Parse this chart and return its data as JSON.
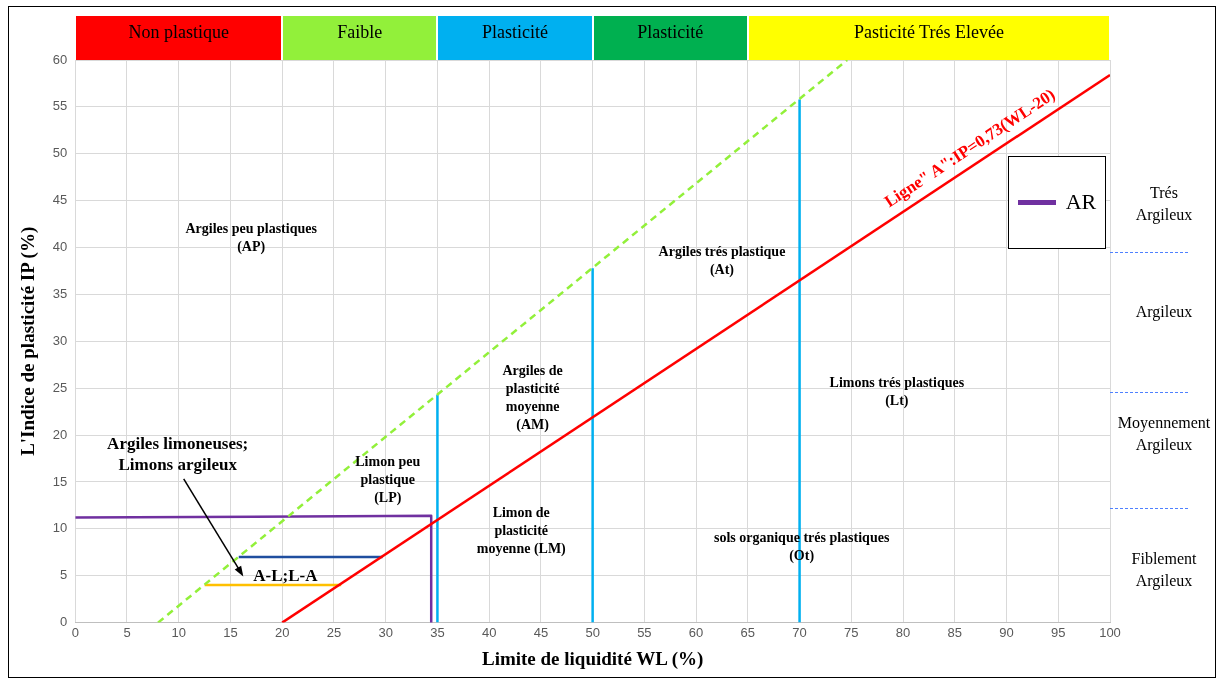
{
  "chart_data": {
    "type": "line",
    "xlabel": "Limite de liquidité WL (%)",
    "ylabel": "L'Indice de plasticité IP (%)",
    "xlim": [
      0,
      100
    ],
    "ylim": [
      0,
      60
    ],
    "xticks": [
      0,
      5,
      10,
      15,
      20,
      25,
      30,
      35,
      40,
      45,
      50,
      55,
      60,
      65,
      70,
      75,
      80,
      85,
      90,
      95,
      100
    ],
    "yticks": [
      0,
      5,
      10,
      15,
      20,
      25,
      30,
      35,
      40,
      45,
      50,
      55,
      60
    ],
    "grid": true,
    "legend": "right",
    "marker": "none",
    "line_style": "solid",
    "series": [
      {
        "color": "#ff0000",
        "x": [
          20,
          100
        ],
        "values": [
          0,
          58.4
        ]
      },
      {
        "color": "#92f03a",
        "x": [
          8,
          74.6
        ],
        "values": [
          0,
          60
        ],
        "line_style": "dashed"
      },
      {
        "color": "#00b0f0",
        "x": [
          35,
          35
        ],
        "values": [
          0,
          24.3
        ]
      },
      {
        "color": "#00b0f0",
        "x": [
          50,
          50
        ],
        "values": [
          0,
          37.8
        ]
      },
      {
        "color": "#00b0f0",
        "x": [
          70,
          70
        ],
        "values": [
          0,
          55.8
        ]
      },
      {
        "name": "AR",
        "color": "#7030a0",
        "x": [
          0,
          34.4,
          34.4
        ],
        "values": [
          11.2,
          11.4,
          0
        ]
      },
      {
        "color": "#1f4e9f",
        "x": [
          15.8,
          29.7
        ],
        "values": [
          7,
          7
        ]
      },
      {
        "color": "#ffc000",
        "x": [
          12.5,
          25.7
        ],
        "values": [
          4,
          4
        ]
      }
    ],
    "annotations": [
      "Non plastique",
      "Faible",
      "Plasticité",
      "Plasticité",
      "Pasticité Trés Elevée",
      "Argiles limoneuses;\nLimons argileux",
      "A-L;L-A",
      "Argiles peu plastiques\n(AP)",
      "Argiles trés plastique\n(At)",
      "Argiles de\nplasticité\nmoyenne\n(AM)",
      "Limon peu\nplastique\n(LP)",
      "Limon de\nplasticité\nmoyenne (LM)",
      "sols organique trés plastiques\n(Ot)",
      "Limons trés plastiques\n(Lt)",
      "Ligne\" A\":IP=0,73(WL-20)",
      "Trés\nArgileux",
      "Argileux",
      "Moyennement\nArgileux",
      "Fiblement\nArgileux"
    ]
  }
}
